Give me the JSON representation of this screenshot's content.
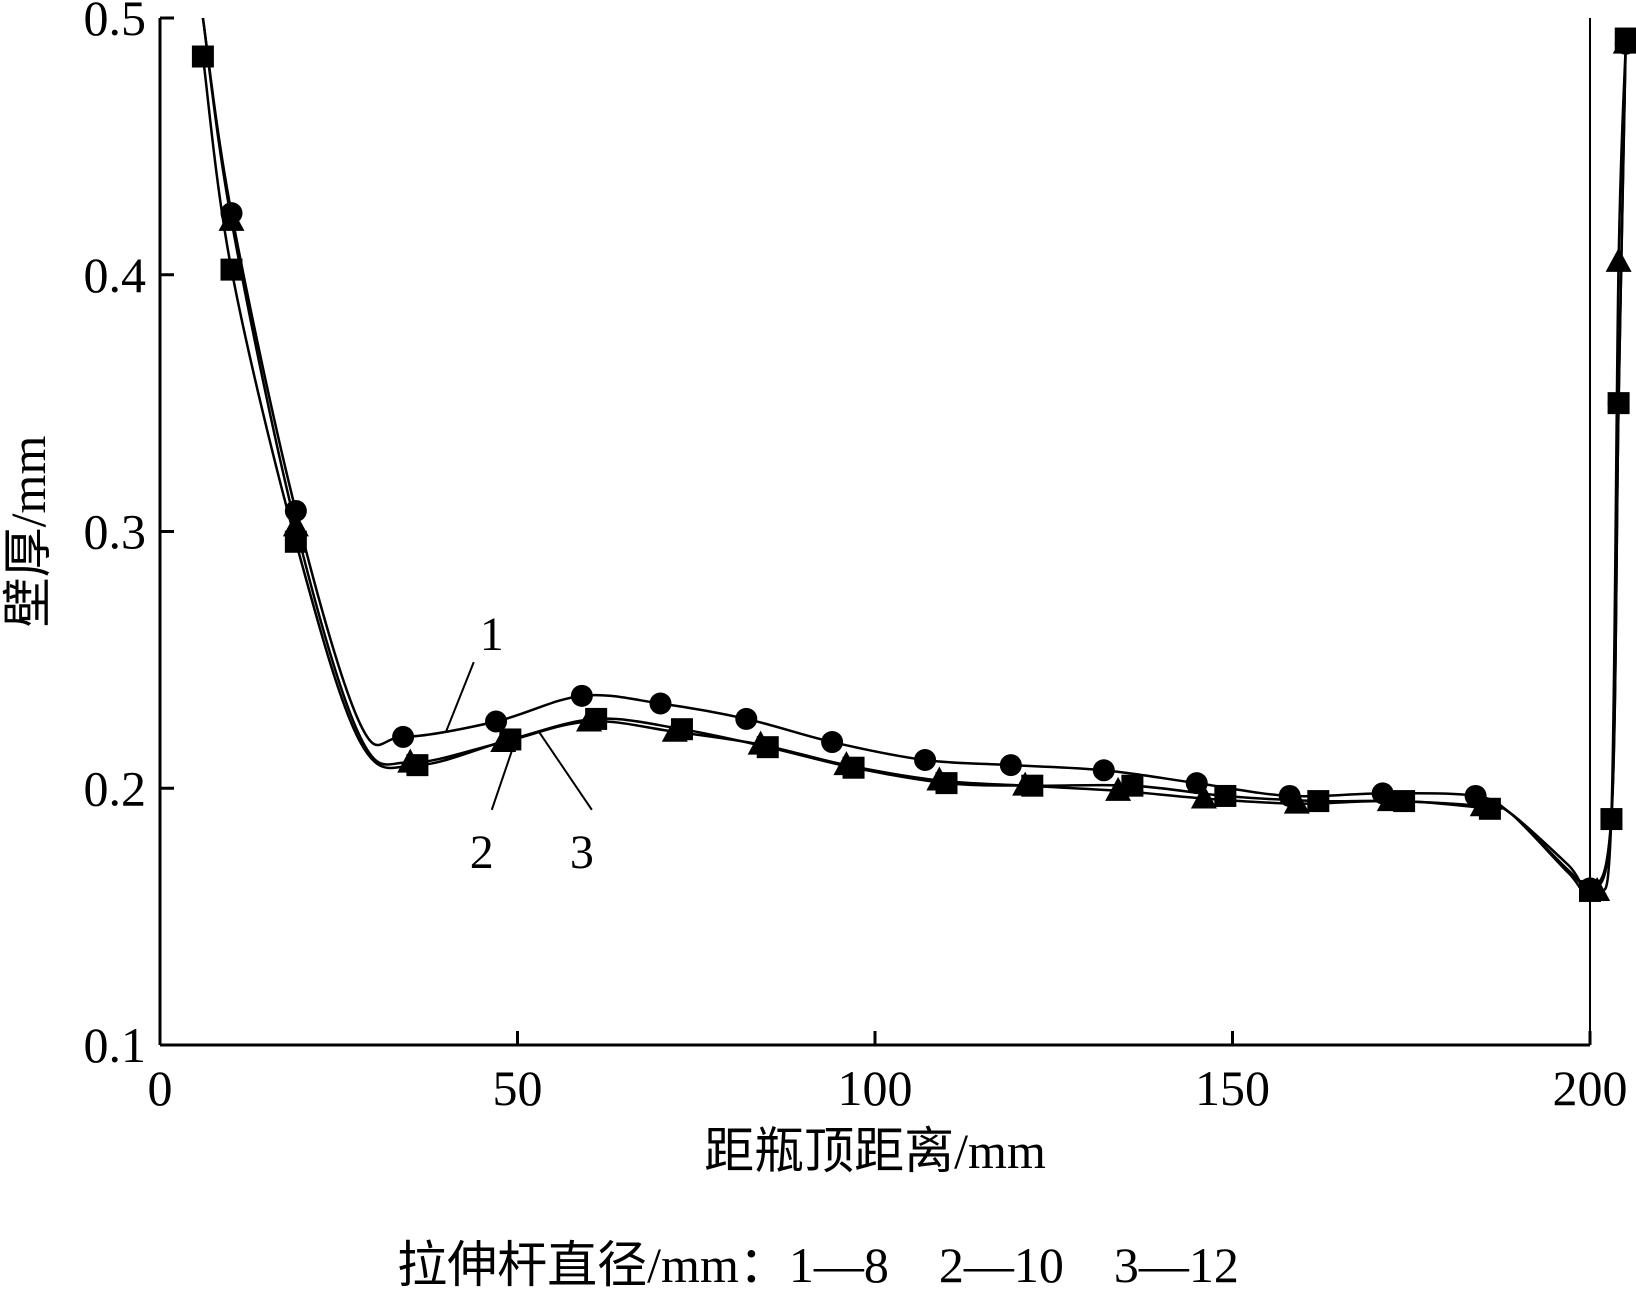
{
  "chart_data": {
    "type": "line",
    "title": "",
    "xlabel": "距瓶顶距离/mm",
    "ylabel": "壁厚/mm",
    "xlim": [
      0,
      200
    ],
    "ylim": [
      0.1,
      0.5
    ],
    "xticks": [
      "0",
      "50",
      "100",
      "150",
      "200"
    ],
    "yticks": [
      "0.1",
      "0.2",
      "0.3",
      "0.4",
      "0.5"
    ],
    "grid": false,
    "legend_text": "拉伸杆直径/mm：1—8　2—10　3—12",
    "series": [
      {
        "name": "1",
        "diameter_mm": 8,
        "marker": "circle",
        "x": [
          6,
          10,
          19,
          28,
          34,
          47,
          59,
          70,
          82,
          94,
          107,
          119,
          132,
          145,
          158,
          171,
          184,
          189,
          197,
          200,
          203,
          204,
          205
        ],
        "y": [
          0.5,
          0.424,
          0.308,
          0.225,
          0.22,
          0.226,
          0.236,
          0.233,
          0.227,
          0.218,
          0.211,
          0.209,
          0.207,
          0.202,
          0.197,
          0.198,
          0.197,
          0.19,
          0.17,
          0.161,
          0.19,
          0.35,
          0.49
        ]
      },
      {
        "name": "2",
        "diameter_mm": 10,
        "marker": "triangle",
        "x": [
          6,
          10,
          19,
          28,
          35,
          48,
          60,
          72,
          84,
          96,
          109,
          121,
          134,
          146,
          159,
          172,
          185,
          189,
          197,
          201,
          203,
          204,
          205
        ],
        "y": [
          0.5,
          0.421,
          0.302,
          0.22,
          0.21,
          0.218,
          0.226,
          0.222,
          0.217,
          0.209,
          0.203,
          0.201,
          0.199,
          0.196,
          0.194,
          0.195,
          0.193,
          0.19,
          0.168,
          0.16,
          0.19,
          0.405,
          0.49
        ]
      },
      {
        "name": "3",
        "diameter_mm": 12,
        "marker": "square",
        "x": [
          6,
          10,
          19,
          28,
          36,
          49,
          61,
          73,
          85,
          97,
          110,
          122,
          136,
          149,
          162,
          174,
          186,
          189,
          197,
          200,
          203,
          204,
          205
        ],
        "y": [
          0.485,
          0.402,
          0.296,
          0.218,
          0.209,
          0.219,
          0.227,
          0.223,
          0.216,
          0.208,
          0.202,
          0.201,
          0.201,
          0.197,
          0.195,
          0.195,
          0.192,
          0.19,
          0.167,
          0.16,
          0.188,
          0.35,
          0.492
        ]
      }
    ],
    "curve_labels": [
      {
        "text": "1",
        "at": [
          45,
          0.253
        ],
        "target": [
          40,
          0.222
        ]
      },
      {
        "text": "2",
        "at": [
          45,
          0.176
        ],
        "target": [
          50,
          0.221
        ]
      },
      {
        "text": "3",
        "at": [
          59,
          0.176
        ],
        "target": [
          53,
          0.222
        ]
      }
    ]
  }
}
